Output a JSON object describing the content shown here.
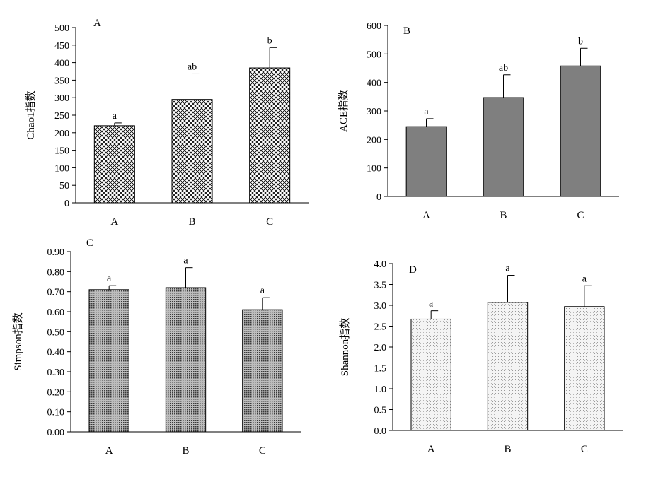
{
  "chart_data": [
    {
      "type": "bar",
      "panel_label": "A",
      "ylabel": "Chao1指数",
      "categories": [
        "A",
        "B",
        "C"
      ],
      "values": [
        220,
        295,
        385
      ],
      "errors": [
        8,
        73,
        58
      ],
      "significance": [
        "a",
        "ab",
        "b"
      ],
      "ylim": [
        0,
        500
      ],
      "yticks": [
        "0",
        "50",
        "100",
        "150",
        "200",
        "250",
        "300",
        "350",
        "400",
        "450",
        "500"
      ],
      "fill": "crosshatch",
      "grid": false
    },
    {
      "type": "bar",
      "panel_label": "B",
      "ylabel": "ACE指数",
      "categories": [
        "A",
        "B",
        "C"
      ],
      "values": [
        245,
        347,
        458
      ],
      "errors": [
        28,
        80,
        62
      ],
      "significance": [
        "a",
        "ab",
        "b"
      ],
      "ylim": [
        0,
        600
      ],
      "yticks": [
        "0",
        "100",
        "200",
        "300",
        "400",
        "500",
        "600"
      ],
      "fill": "#7f7f7f",
      "grid": false
    },
    {
      "type": "bar",
      "panel_label": "C",
      "ylabel": "Simpson指数",
      "categories": [
        "A",
        "B",
        "C"
      ],
      "values": [
        0.71,
        0.72,
        0.61
      ],
      "errors": [
        0.02,
        0.1,
        0.06
      ],
      "significance": [
        "a",
        "a",
        "a"
      ],
      "ylim": [
        0,
        0.9
      ],
      "yticks": [
        "0.00",
        "0.10",
        "0.20",
        "0.30",
        "0.40",
        "0.50",
        "0.60",
        "0.70",
        "0.80",
        "0.90"
      ],
      "fill": "dark-dots",
      "grid": false
    },
    {
      "type": "bar",
      "panel_label": "D",
      "ylabel": "Shannon指数",
      "categories": [
        "A",
        "B",
        "C"
      ],
      "values": [
        2.67,
        3.07,
        2.97
      ],
      "errors": [
        0.2,
        0.65,
        0.5
      ],
      "significance": [
        "a",
        "a",
        "a"
      ],
      "ylim": [
        0,
        4.0
      ],
      "yticks": [
        "0.0",
        "0.5",
        "1.0",
        "1.5",
        "2.0",
        "2.5",
        "3.0",
        "3.5",
        "4.0"
      ],
      "fill": "light-dots",
      "grid": false
    }
  ]
}
